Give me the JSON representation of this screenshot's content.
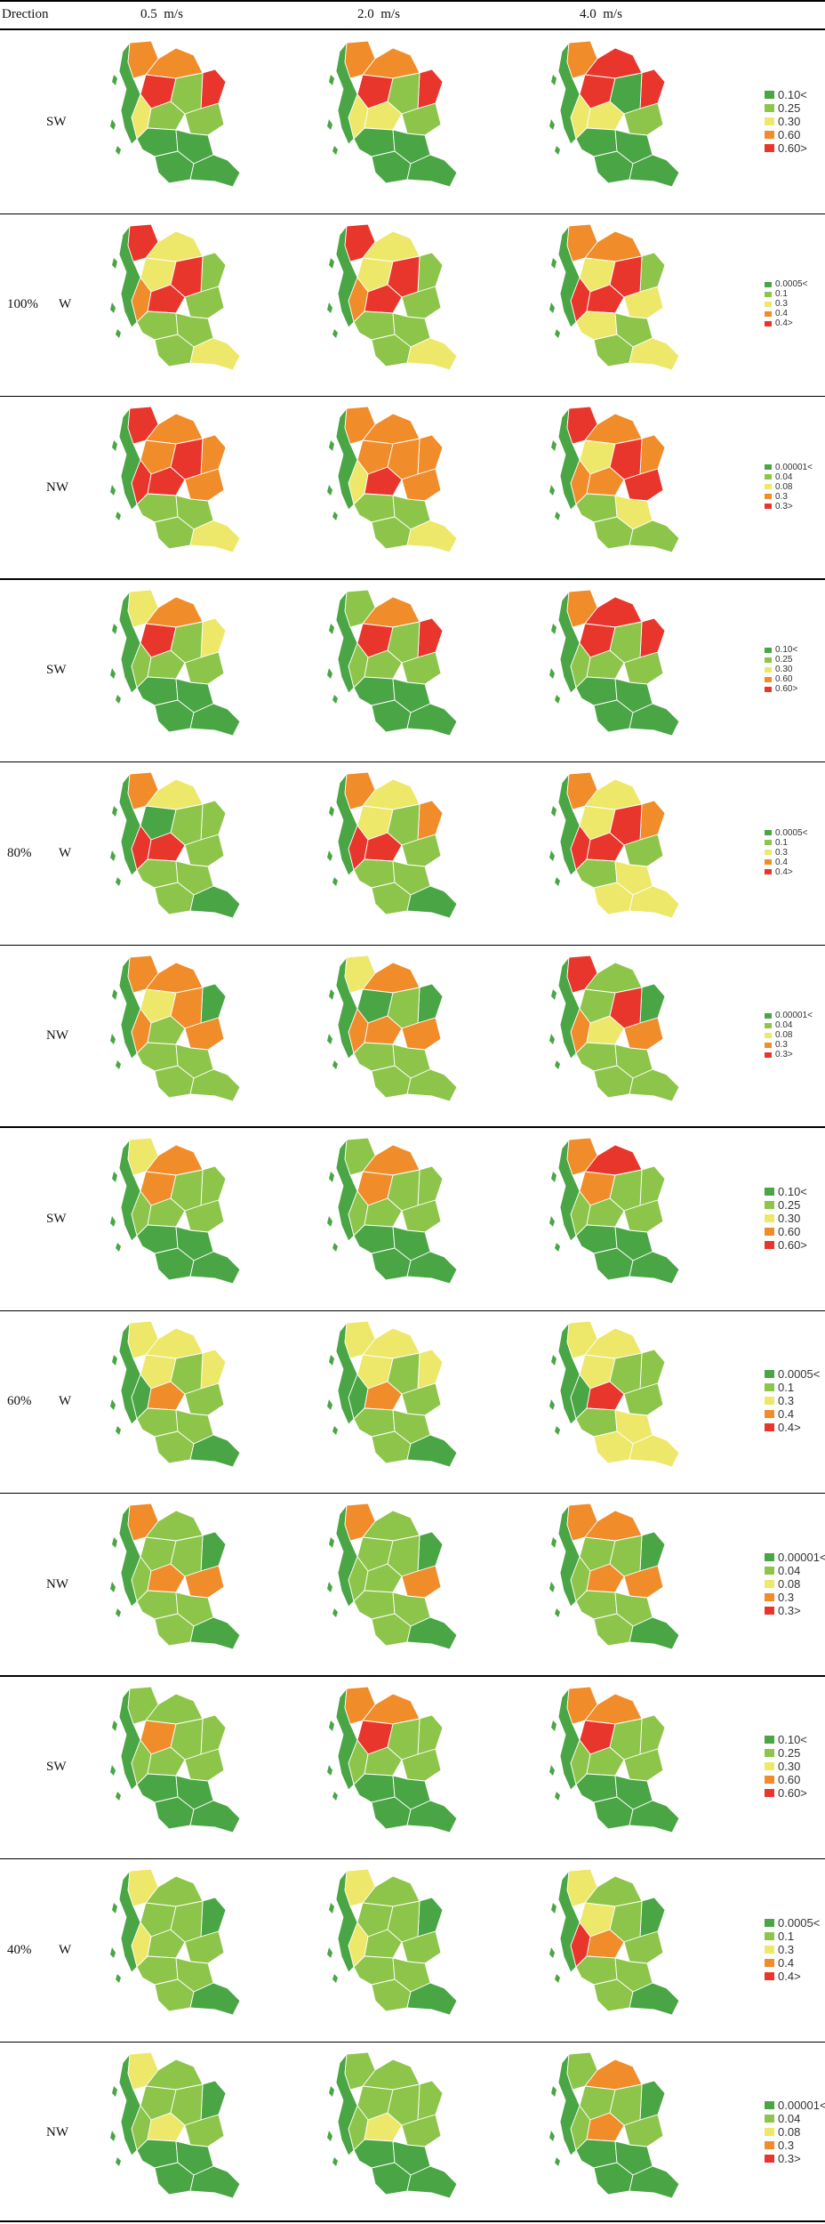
{
  "header": {
    "direction": "Drection",
    "speeds": [
      "0.5  m/s",
      "2.0  m/s",
      "4.0  m/s"
    ]
  },
  "category_colors": {
    "dark_green": "#4aa545",
    "light_green": "#8dc54a",
    "yellow": "#ede86a",
    "orange": "#f08c2a",
    "red": "#e8362c"
  },
  "legends": {
    "SW": [
      "0.10<",
      "0.25",
      "0.30",
      "0.60",
      "0.60>"
    ],
    "W": [
      "0.0005<",
      "0.1",
      "0.3",
      "0.4",
      "0.4>"
    ],
    "NW": [
      "0.00001<",
      "0.04",
      "0.08",
      "0.3",
      "0.3>"
    ]
  },
  "groups": [
    {
      "label": "100%",
      "rows": [
        {
          "direction": "SW",
          "maps": [
            [
              "O",
              "O",
              "R",
              "R",
              "Y",
              "L",
              "L",
              "L",
              "D",
              "D",
              "D",
              "D"
            ],
            [
              "O",
              "O",
              "R",
              "R",
              "Y",
              "Y",
              "L",
              "L",
              "D",
              "D",
              "D",
              "D"
            ],
            [
              "O",
              "R",
              "R",
              "R",
              "Y",
              "Y",
              "D",
              "L",
              "D",
              "D",
              "D",
              "D"
            ]
          ]
        },
        {
          "direction": "W",
          "maps": [
            [
              "R",
              "Y",
              "Y",
              "L",
              "O",
              "R",
              "R",
              "L",
              "L",
              "L",
              "L",
              "Y"
            ],
            [
              "R",
              "Y",
              "Y",
              "L",
              "O",
              "R",
              "R",
              "L",
              "L",
              "L",
              "L",
              "Y"
            ],
            [
              "O",
              "O",
              "Y",
              "L",
              "R",
              "R",
              "R",
              "Y",
              "Y",
              "L",
              "L",
              "Y"
            ]
          ]
        },
        {
          "direction": "NW",
          "maps": [
            [
              "R",
              "O",
              "O",
              "O",
              "R",
              "R",
              "R",
              "O",
              "L",
              "L",
              "L",
              "Y"
            ],
            [
              "O",
              "O",
              "O",
              "O",
              "Y",
              "R",
              "O",
              "O",
              "L",
              "L",
              "L",
              "Y"
            ],
            [
              "R",
              "O",
              "Y",
              "O",
              "O",
              "O",
              "R",
              "R",
              "L",
              "Y",
              "L",
              "L"
            ]
          ]
        }
      ]
    },
    {
      "label": "80%",
      "rows": [
        {
          "direction": "SW",
          "maps": [
            [
              "Y",
              "O",
              "R",
              "Y",
              "L",
              "L",
              "L",
              "L",
              "D",
              "D",
              "D",
              "D"
            ],
            [
              "L",
              "O",
              "R",
              "R",
              "L",
              "L",
              "L",
              "L",
              "D",
              "D",
              "D",
              "D"
            ],
            [
              "O",
              "R",
              "R",
              "R",
              "L",
              "L",
              "L",
              "L",
              "D",
              "D",
              "D",
              "D"
            ]
          ]
        },
        {
          "direction": "W",
          "maps": [
            [
              "O",
              "Y",
              "D",
              "L",
              "R",
              "R",
              "L",
              "L",
              "L",
              "L",
              "L",
              "D"
            ],
            [
              "O",
              "Y",
              "Y",
              "O",
              "R",
              "R",
              "L",
              "L",
              "L",
              "L",
              "L",
              "D"
            ],
            [
              "O",
              "Y",
              "Y",
              "O",
              "R",
              "R",
              "R",
              "L",
              "L",
              "Y",
              "Y",
              "Y"
            ]
          ]
        },
        {
          "direction": "NW",
          "maps": [
            [
              "O",
              "O",
              "Y",
              "D",
              "O",
              "L",
              "O",
              "O",
              "L",
              "L",
              "L",
              "L"
            ],
            [
              "Y",
              "O",
              "D",
              "D",
              "O",
              "O",
              "L",
              "O",
              "L",
              "L",
              "L",
              "L"
            ],
            [
              "R",
              "L",
              "L",
              "D",
              "O",
              "Y",
              "R",
              "O",
              "L",
              "L",
              "L",
              "L"
            ]
          ]
        }
      ]
    },
    {
      "label": "60%",
      "rows": [
        {
          "direction": "SW",
          "maps": [
            [
              "Y",
              "O",
              "O",
              "L",
              "L",
              "L",
              "L",
              "L",
              "D",
              "D",
              "D",
              "D"
            ],
            [
              "L",
              "O",
              "O",
              "L",
              "L",
              "L",
              "L",
              "L",
              "D",
              "D",
              "D",
              "D"
            ],
            [
              "O",
              "R",
              "O",
              "L",
              "L",
              "L",
              "L",
              "L",
              "D",
              "D",
              "D",
              "D"
            ]
          ]
        },
        {
          "direction": "W",
          "maps": [
            [
              "Y",
              "Y",
              "Y",
              "Y",
              "D",
              "O",
              "L",
              "L",
              "L",
              "L",
              "L",
              "D"
            ],
            [
              "Y",
              "Y",
              "Y",
              "Y",
              "D",
              "O",
              "L",
              "L",
              "L",
              "L",
              "L",
              "D"
            ],
            [
              "Y",
              "Y",
              "Y",
              "L",
              "D",
              "R",
              "L",
              "L",
              "L",
              "Y",
              "Y",
              "Y"
            ]
          ]
        },
        {
          "direction": "NW",
          "maps": [
            [
              "O",
              "L",
              "L",
              "D",
              "L",
              "O",
              "L",
              "O",
              "L",
              "L",
              "L",
              "D"
            ],
            [
              "O",
              "L",
              "L",
              "D",
              "L",
              "L",
              "L",
              "O",
              "L",
              "L",
              "L",
              "D"
            ],
            [
              "O",
              "O",
              "L",
              "D",
              "L",
              "O",
              "L",
              "O",
              "L",
              "L",
              "L",
              "D"
            ]
          ]
        }
      ]
    },
    {
      "label": "40%",
      "rows": [
        {
          "direction": "SW",
          "maps": [
            [
              "L",
              "L",
              "O",
              "L",
              "L",
              "L",
              "L",
              "L",
              "D",
              "D",
              "D",
              "D"
            ],
            [
              "O",
              "O",
              "R",
              "L",
              "L",
              "L",
              "L",
              "L",
              "D",
              "D",
              "D",
              "D"
            ],
            [
              "O",
              "O",
              "R",
              "L",
              "L",
              "L",
              "L",
              "L",
              "D",
              "D",
              "D",
              "D"
            ]
          ]
        },
        {
          "direction": "W",
          "maps": [
            [
              "Y",
              "L",
              "L",
              "D",
              "Y",
              "L",
              "L",
              "L",
              "L",
              "L",
              "L",
              "D"
            ],
            [
              "Y",
              "L",
              "L",
              "D",
              "Y",
              "L",
              "L",
              "L",
              "L",
              "L",
              "L",
              "D"
            ],
            [
              "Y",
              "L",
              "Y",
              "D",
              "R",
              "O",
              "L",
              "L",
              "L",
              "L",
              "L",
              "D"
            ]
          ]
        },
        {
          "direction": "NW",
          "maps": [
            [
              "Y",
              "L",
              "L",
              "D",
              "L",
              "Y",
              "L",
              "L",
              "D",
              "D",
              "D",
              "D"
            ],
            [
              "L",
              "L",
              "L",
              "L",
              "L",
              "Y",
              "L",
              "L",
              "D",
              "D",
              "D",
              "D"
            ],
            [
              "L",
              "O",
              "L",
              "D",
              "L",
              "O",
              "L",
              "L",
              "D",
              "D",
              "D",
              "D"
            ]
          ]
        }
      ]
    }
  ]
}
